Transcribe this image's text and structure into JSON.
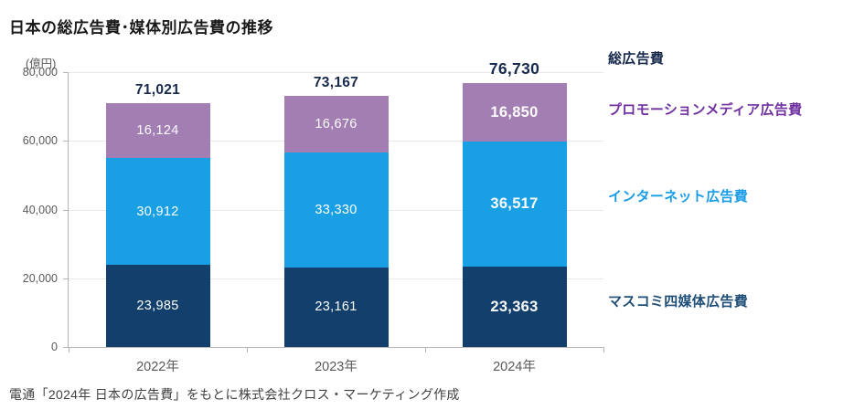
{
  "title": "日本の総広告費･媒体別広告費の推移",
  "footer_source": "電通「2024年 日本の広告費」をもとに株式会社クロス・マーケティング作成",
  "colors": {
    "bar_masukomi": "#123f6c",
    "bar_internet": "#189fe4",
    "bar_promotion": "#a27eb3",
    "total_label_text": "#17294d",
    "legend_total_text": "#17294d",
    "legend_promotion_text": "#7030a0",
    "legend_internet_text": "#189ce8",
    "legend_masukomi_text": "#1f4e79",
    "axis_line": "#b3b3b3",
    "gridline": "#e9e9e9",
    "axis_text": "#595959"
  },
  "chart_data": {
    "type": "bar",
    "stacked": true,
    "title": "日本の総広告費･媒体別広告費の推移",
    "unit_label": "(億円)",
    "categories": [
      "2022年",
      "2023年",
      "2024年"
    ],
    "series": [
      {
        "name": "マスコミ四媒体広告費",
        "color": "#123f6c",
        "values": [
          23985,
          23161,
          23363
        ]
      },
      {
        "name": "インターネット広告費",
        "color": "#189fe4",
        "values": [
          30912,
          33330,
          36517
        ]
      },
      {
        "name": "プロモーションメディア広告費",
        "color": "#a27eb3",
        "values": [
          16124,
          16676,
          16850
        ]
      }
    ],
    "totals": {
      "name": "総広告費",
      "values": [
        71021,
        73167,
        76730
      ]
    },
    "ylim": [
      0,
      80000
    ],
    "yticks": [
      0,
      20000,
      40000,
      60000,
      80000
    ],
    "grid": true,
    "legend_position": "right",
    "emphasized_category": "2024年"
  },
  "legend": {
    "items": [
      {
        "label": "総広告費",
        "color": "#17294d"
      },
      {
        "label": "プロモーションメディア広告費",
        "color": "#7030a0"
      },
      {
        "label": "インターネット広告費",
        "color": "#189ce8"
      },
      {
        "label": "マスコミ四媒体広告費",
        "color": "#1f4e79"
      }
    ]
  }
}
